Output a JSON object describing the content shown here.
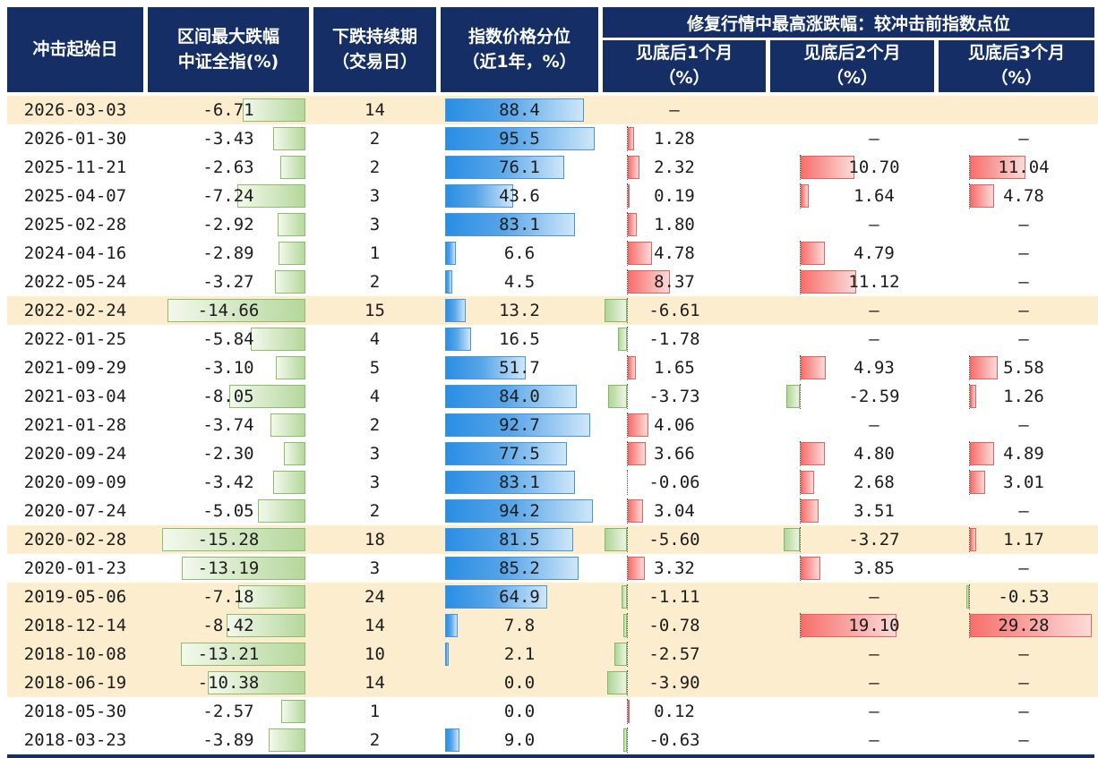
{
  "header": {
    "col_date": "冲击起始日",
    "col_drawdown_l1": "区间最大跌幅",
    "col_drawdown_l2": "中证全指(%)",
    "col_duration_l1": "下跌持续期",
    "col_duration_l2": "（交易日）",
    "col_percentile_l1": "指数价格分位",
    "col_percentile_l2": "（近1年，%）",
    "recovery_group": "修复行情中最高涨跌幅：较冲击前指数点位",
    "m1_l1": "见底后1个月",
    "m1_l2": "（%）",
    "m2_l1": "见底后2个月",
    "m2_l2": "（%）",
    "m3_l1": "见底后3个月",
    "m3_l2": "（%）"
  },
  "colors": {
    "header_bg": "#152F66",
    "highlight_row_bg": "#FCEDCE",
    "drawdown_bar_green": "#b5d79c",
    "percentile_bar_blue": "#2a8ee4",
    "gain_bar_red": "#f76f6c",
    "loss_bar_green": "#b0d596"
  },
  "dash": "–",
  "chart_data": {
    "type": "table",
    "title": "修复行情中最高涨跌幅：较冲击前指数点位",
    "columns": [
      "冲击起始日",
      "区间最大跌幅 中证全指(%)",
      "下跌持续期（交易日）",
      "指数价格分位（近1年，%）",
      "见底后1个月（%）",
      "见底后2个月（%）",
      "见底后3个月（%）"
    ],
    "rows": [
      {
        "date": "2026-03-03",
        "drawdown": "-6.71",
        "days": "14",
        "pctile": "88.4",
        "m1": "–",
        "m2": "",
        "m3": "",
        "hl": true
      },
      {
        "date": "2026-01-30",
        "drawdown": "-3.43",
        "days": "2",
        "pctile": "95.5",
        "m1": "1.28",
        "m2": "–",
        "m3": "–",
        "hl": false
      },
      {
        "date": "2025-11-21",
        "drawdown": "-2.63",
        "days": "2",
        "pctile": "76.1",
        "m1": "2.32",
        "m2": "10.70",
        "m3": "11.04",
        "hl": false
      },
      {
        "date": "2025-04-07",
        "drawdown": "-7.24",
        "days": "3",
        "pctile": "43.6",
        "m1": "0.19",
        "m2": "1.64",
        "m3": "4.78",
        "hl": false
      },
      {
        "date": "2025-02-28",
        "drawdown": "-2.92",
        "days": "3",
        "pctile": "83.1",
        "m1": "1.80",
        "m2": "–",
        "m3": "–",
        "hl": false
      },
      {
        "date": "2024-04-16",
        "drawdown": "-2.89",
        "days": "1",
        "pctile": "6.6",
        "m1": "4.78",
        "m2": "4.79",
        "m3": "–",
        "hl": false
      },
      {
        "date": "2022-05-24",
        "drawdown": "-3.27",
        "days": "2",
        "pctile": "4.5",
        "m1": "8.37",
        "m2": "11.12",
        "m3": "–",
        "hl": false
      },
      {
        "date": "2022-02-24",
        "drawdown": "-14.66",
        "days": "15",
        "pctile": "13.2",
        "m1": "-6.61",
        "m2": "–",
        "m3": "–",
        "hl": true
      },
      {
        "date": "2022-01-25",
        "drawdown": "-5.84",
        "days": "4",
        "pctile": "16.5",
        "m1": "-1.78",
        "m2": "–",
        "m3": "–",
        "hl": false
      },
      {
        "date": "2021-09-29",
        "drawdown": "-3.10",
        "days": "5",
        "pctile": "51.7",
        "m1": "1.65",
        "m2": "4.93",
        "m3": "5.58",
        "hl": false
      },
      {
        "date": "2021-03-04",
        "drawdown": "-8.05",
        "days": "4",
        "pctile": "84.0",
        "m1": "-3.73",
        "m2": "-2.59",
        "m3": "1.26",
        "hl": false
      },
      {
        "date": "2021-01-28",
        "drawdown": "-3.74",
        "days": "2",
        "pctile": "92.7",
        "m1": "4.06",
        "m2": "–",
        "m3": "–",
        "hl": false
      },
      {
        "date": "2020-09-24",
        "drawdown": "-2.30",
        "days": "3",
        "pctile": "77.5",
        "m1": "3.66",
        "m2": "4.80",
        "m3": "4.89",
        "hl": false
      },
      {
        "date": "2020-09-09",
        "drawdown": "-3.42",
        "days": "3",
        "pctile": "83.1",
        "m1": "-0.06",
        "m2": "2.68",
        "m3": "3.01",
        "hl": false
      },
      {
        "date": "2020-07-24",
        "drawdown": "-5.05",
        "days": "2",
        "pctile": "94.2",
        "m1": "3.04",
        "m2": "3.51",
        "m3": "–",
        "hl": false
      },
      {
        "date": "2020-02-28",
        "drawdown": "-15.28",
        "days": "18",
        "pctile": "81.5",
        "m1": "-5.60",
        "m2": "-3.27",
        "m3": "1.17",
        "hl": true
      },
      {
        "date": "2020-01-23",
        "drawdown": "-13.19",
        "days": "3",
        "pctile": "85.2",
        "m1": "3.32",
        "m2": "3.85",
        "m3": "–",
        "hl": false
      },
      {
        "date": "2019-05-06",
        "drawdown": "-7.18",
        "days": "24",
        "pctile": "64.9",
        "m1": "-1.11",
        "m2": "–",
        "m3": "-0.53",
        "hl": true
      },
      {
        "date": "2018-12-14",
        "drawdown": "-8.42",
        "days": "14",
        "pctile": "7.8",
        "m1": "-0.78",
        "m2": "19.10",
        "m3": "29.28",
        "hl": true
      },
      {
        "date": "2018-10-08",
        "drawdown": "-13.21",
        "days": "10",
        "pctile": "2.1",
        "m1": "-2.57",
        "m2": "–",
        "m3": "–",
        "hl": true
      },
      {
        "date": "2018-06-19",
        "drawdown": "-10.38",
        "days": "14",
        "pctile": "0.0",
        "m1": "-3.90",
        "m2": "–",
        "m3": "–",
        "hl": true
      },
      {
        "date": "2018-05-30",
        "drawdown": "-2.57",
        "days": "1",
        "pctile": "0.0",
        "m1": "0.12",
        "m2": "–",
        "m3": "–",
        "hl": false
      },
      {
        "date": "2018-03-23",
        "drawdown": "-3.89",
        "days": "2",
        "pctile": "9.0",
        "m1": "-0.63",
        "m2": "–",
        "m3": "–",
        "hl": false
      }
    ]
  }
}
